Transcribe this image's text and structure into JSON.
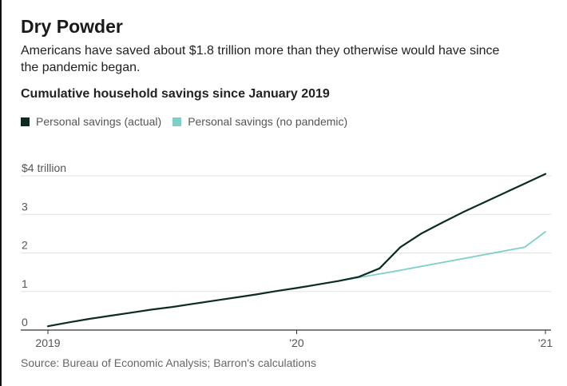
{
  "title": "Dry Powder",
  "subtitle": "Americans have saved about $1.8 trillion more than they otherwise would have since the pandemic began.",
  "source": "Source: Bureau of Economic Analysis; Barron's calculations",
  "chart_data": {
    "type": "line",
    "title": "Cumulative household savings since January 2019",
    "xlabel": "",
    "ylabel": "",
    "xlim": [
      "2019-01",
      "2021-01"
    ],
    "ylim": [
      0,
      4
    ],
    "grid": true,
    "legend_placement": "top-left",
    "y_ticks": [
      {
        "value": 0,
        "label": "0"
      },
      {
        "value": 1,
        "label": "1"
      },
      {
        "value": 2,
        "label": "2"
      },
      {
        "value": 3,
        "label": "3"
      },
      {
        "value": 4,
        "label": "$4 trillion"
      }
    ],
    "x_ticks": [
      {
        "value": "2019-01",
        "label": "2019"
      },
      {
        "value": "2020-01",
        "label": "'20"
      },
      {
        "value": "2021-01",
        "label": "'21"
      }
    ],
    "series": [
      {
        "name": "Personal savings (actual)",
        "color": "#0d2b25",
        "points": [
          [
            "2019-01",
            0.1
          ],
          [
            "2019-02",
            0.2
          ],
          [
            "2019-03",
            0.29
          ],
          [
            "2019-04",
            0.37
          ],
          [
            "2019-05",
            0.45
          ],
          [
            "2019-06",
            0.53
          ],
          [
            "2019-07",
            0.6
          ],
          [
            "2019-08",
            0.68
          ],
          [
            "2019-09",
            0.76
          ],
          [
            "2019-10",
            0.84
          ],
          [
            "2019-11",
            0.92
          ],
          [
            "2019-12",
            1.01
          ],
          [
            "2020-01",
            1.09
          ],
          [
            "2020-02",
            1.18
          ],
          [
            "2020-03",
            1.27
          ],
          [
            "2020-04",
            1.38
          ],
          [
            "2020-05",
            1.6
          ],
          [
            "2020-06",
            2.15
          ],
          [
            "2020-07",
            2.5
          ],
          [
            "2020-08",
            2.78
          ],
          [
            "2020-09",
            3.05
          ],
          [
            "2020-10",
            3.3
          ],
          [
            "2020-11",
            3.55
          ],
          [
            "2020-12",
            3.8
          ],
          [
            "2021-01",
            4.05
          ]
        ]
      },
      {
        "name": "Personal savings (no pandemic)",
        "color": "#7ecfc7",
        "points": [
          [
            "2020-03",
            1.27
          ],
          [
            "2020-06",
            1.55
          ],
          [
            "2020-09",
            1.85
          ],
          [
            "2020-12",
            2.15
          ],
          [
            "2021-01",
            2.55
          ]
        ]
      }
    ]
  }
}
